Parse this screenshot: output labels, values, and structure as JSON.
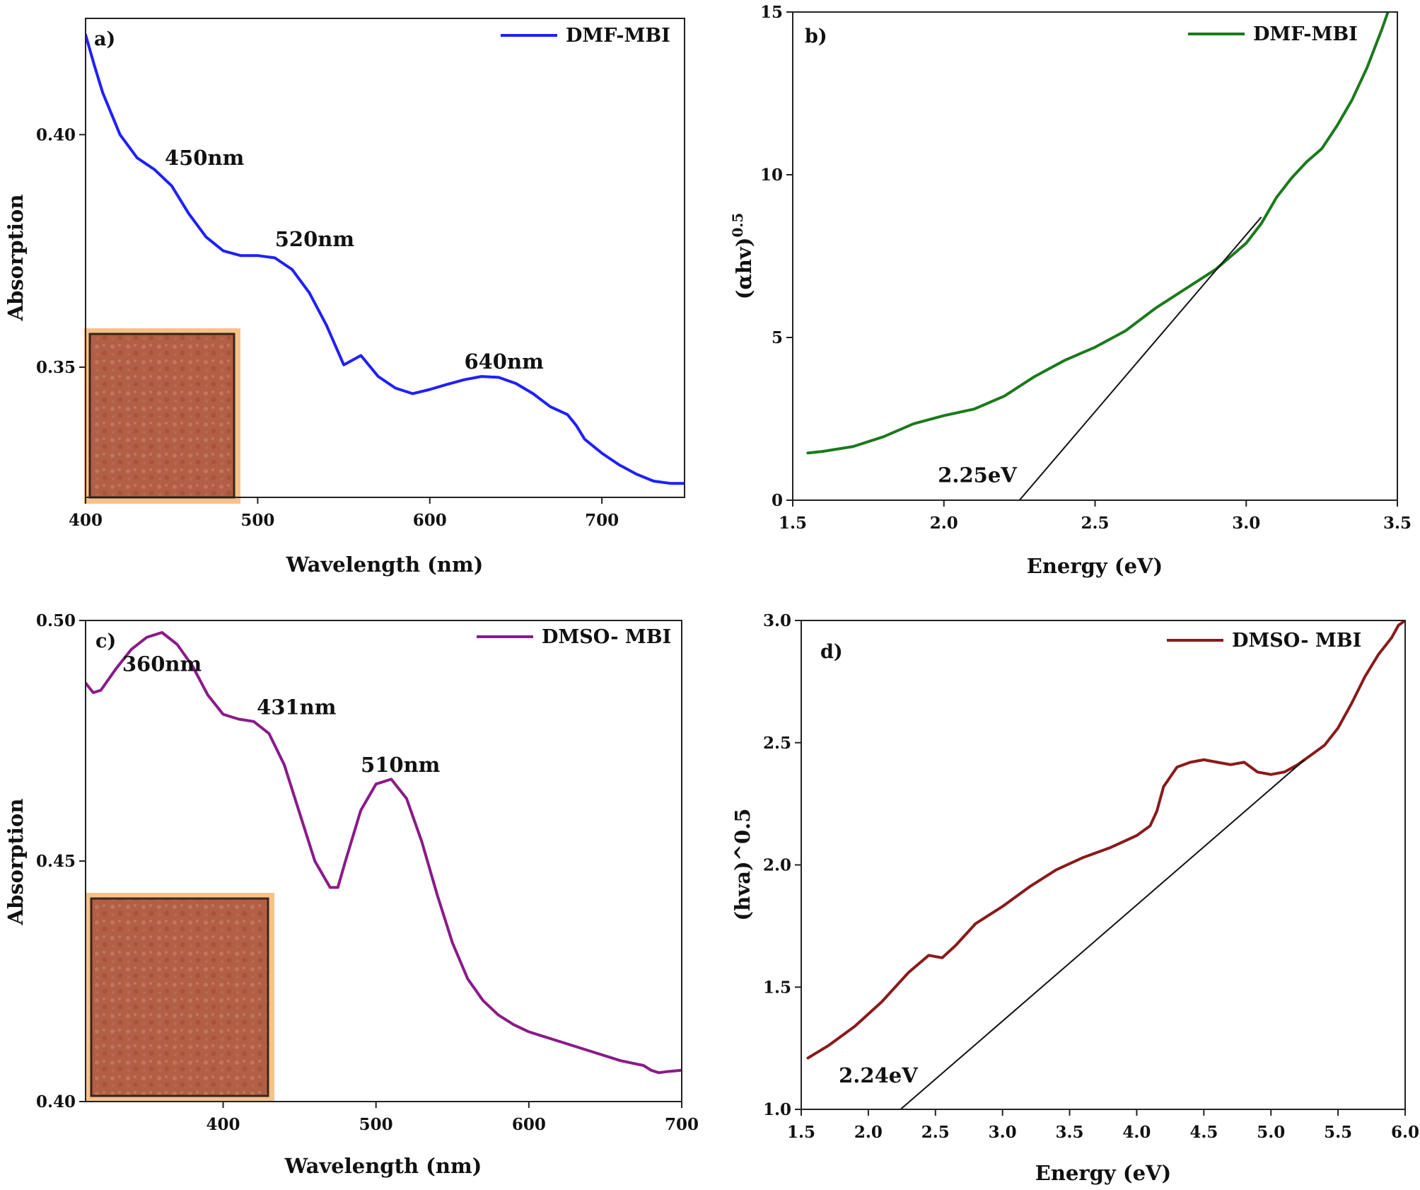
{
  "chart_data": [
    {
      "panel": "a)",
      "type": "line",
      "xlabel": "Wavelength (nm)",
      "ylabel": "Absorption",
      "xlim": [
        400,
        748
      ],
      "ylim": [
        0.322,
        0.425
      ],
      "xticks": [
        400,
        500,
        600,
        700
      ],
      "yticks": [
        0.35,
        0.4
      ],
      "ytick_labels": [
        "0.35",
        "0.40"
      ],
      "series": [
        {
          "name": "DMF-MBI",
          "color": "#1f1fff",
          "x": [
            400,
            405,
            410,
            420,
            430,
            440,
            450,
            460,
            470,
            480,
            490,
            500,
            510,
            520,
            530,
            540,
            550,
            560,
            570,
            580,
            590,
            600,
            610,
            620,
            630,
            640,
            650,
            660,
            670,
            680,
            685,
            690,
            700,
            710,
            720,
            730,
            740,
            748
          ],
          "y": [
            0.4215,
            0.415,
            0.409,
            0.4,
            0.395,
            0.3925,
            0.389,
            0.383,
            0.378,
            0.375,
            0.374,
            0.374,
            0.3735,
            0.371,
            0.366,
            0.359,
            0.3505,
            0.3525,
            0.348,
            0.3455,
            0.3443,
            0.3452,
            0.3463,
            0.3473,
            0.348,
            0.3478,
            0.3465,
            0.3443,
            0.3415,
            0.3398,
            0.3375,
            0.3345,
            0.3315,
            0.329,
            0.327,
            0.3255,
            0.325,
            0.325
          ]
        }
      ],
      "annotations": [
        {
          "text": "450nm",
          "x": 446,
          "y": 0.3935
        },
        {
          "text": "520nm",
          "x": 510,
          "y": 0.376
        },
        {
          "text": "640nm",
          "x": 620,
          "y": 0.3497
        }
      ]
    },
    {
      "panel": "b)",
      "type": "line",
      "xlabel": "Energy (eV)",
      "ylabel": "(αhv)",
      "ylabel_sup": "0.5",
      "xlim": [
        1.5,
        3.5
      ],
      "ylim": [
        0,
        15
      ],
      "xticks": [
        1.5,
        2.0,
        2.5,
        3.0,
        3.5
      ],
      "yticks": [
        0,
        5,
        10,
        15
      ],
      "series": [
        {
          "name": "DMF-MBI",
          "color": "#1a7a1a",
          "x": [
            1.55,
            1.6,
            1.7,
            1.8,
            1.9,
            2.0,
            2.1,
            2.2,
            2.3,
            2.4,
            2.5,
            2.6,
            2.7,
            2.8,
            2.9,
            3.0,
            3.05,
            3.1,
            3.15,
            3.2,
            3.25,
            3.3,
            3.35,
            3.4,
            3.45,
            3.48
          ],
          "y": [
            1.45,
            1.5,
            1.65,
            1.95,
            2.35,
            2.6,
            2.8,
            3.2,
            3.8,
            4.3,
            4.7,
            5.2,
            5.9,
            6.5,
            7.1,
            7.9,
            8.5,
            9.3,
            9.9,
            10.4,
            10.8,
            11.5,
            12.3,
            13.3,
            14.5,
            15.3
          ]
        }
      ],
      "fit_line": {
        "x": [
          2.25,
          3.05
        ],
        "y": [
          0,
          8.7
        ]
      },
      "annotations": [
        {
          "text": "2.25eV",
          "x": 1.98,
          "y": 0.55
        }
      ]
    },
    {
      "panel": "c)",
      "type": "line",
      "xlabel": "Wavelength (nm)",
      "ylabel": "Absorption",
      "xlim": [
        310,
        700
      ],
      "ylim": [
        0.4,
        0.5
      ],
      "xticks": [
        400,
        500,
        600,
        700
      ],
      "yticks": [
        0.4,
        0.45,
        0.5
      ],
      "ytick_labels": [
        "0.40",
        "0.45",
        "0.50"
      ],
      "series": [
        {
          "name": "DMSO- MBI",
          "color": "#8a1a8a",
          "x": [
            310,
            315,
            320,
            330,
            340,
            350,
            360,
            370,
            380,
            390,
            400,
            410,
            420,
            430,
            440,
            450,
            460,
            470,
            475,
            480,
            490,
            500,
            510,
            520,
            530,
            540,
            550,
            560,
            570,
            580,
            590,
            600,
            620,
            640,
            660,
            675,
            680,
            685,
            690,
            700
          ],
          "y": [
            0.487,
            0.485,
            0.4855,
            0.49,
            0.494,
            0.4965,
            0.4975,
            0.495,
            0.4905,
            0.4845,
            0.4805,
            0.4795,
            0.479,
            0.4765,
            0.47,
            0.46,
            0.45,
            0.4445,
            0.4445,
            0.45,
            0.4605,
            0.466,
            0.467,
            0.463,
            0.454,
            0.443,
            0.433,
            0.4255,
            0.421,
            0.418,
            0.416,
            0.4145,
            0.4125,
            0.4105,
            0.4085,
            0.4075,
            0.4065,
            0.406,
            0.4062,
            0.4065
          ]
        }
      ],
      "annotations": [
        {
          "text": "360nm",
          "x": 334,
          "y": 0.4895
        },
        {
          "text": "431nm",
          "x": 422,
          "y": 0.4805
        },
        {
          "text": "510nm",
          "x": 490,
          "y": 0.4685
        }
      ]
    },
    {
      "panel": "d)",
      "type": "line",
      "xlabel": "Energy (eV)",
      "ylabel": "(hva)^0.5",
      "xlim": [
        1.5,
        6.0
      ],
      "ylim": [
        1.0,
        3.0
      ],
      "xticks": [
        1.5,
        2.0,
        2.5,
        3.0,
        3.5,
        4.0,
        4.5,
        5.0,
        5.5,
        6.0
      ],
      "yticks": [
        1.0,
        1.5,
        2.0,
        2.5,
        3.0
      ],
      "series": [
        {
          "name": "DMSO- MBI",
          "color": "#8a1a1a",
          "x": [
            1.55,
            1.7,
            1.9,
            2.1,
            2.3,
            2.45,
            2.55,
            2.65,
            2.8,
            3.0,
            3.2,
            3.4,
            3.6,
            3.8,
            4.0,
            4.1,
            4.15,
            4.2,
            4.3,
            4.4,
            4.5,
            4.6,
            4.7,
            4.8,
            4.9,
            5.0,
            5.1,
            5.2,
            5.3,
            5.4,
            5.5,
            5.6,
            5.7,
            5.8,
            5.9,
            5.95,
            6.0
          ],
          "y": [
            1.21,
            1.26,
            1.34,
            1.44,
            1.56,
            1.63,
            1.62,
            1.67,
            1.76,
            1.83,
            1.91,
            1.98,
            2.03,
            2.07,
            2.12,
            2.16,
            2.22,
            2.32,
            2.4,
            2.42,
            2.43,
            2.42,
            2.41,
            2.42,
            2.38,
            2.37,
            2.38,
            2.41,
            2.45,
            2.49,
            2.56,
            2.66,
            2.77,
            2.86,
            2.93,
            2.98,
            3.0
          ]
        }
      ],
      "fit_line": {
        "x": [
          2.24,
          5.25
        ],
        "y": [
          1.0,
          2.43
        ]
      },
      "annotations": [
        {
          "text": "2.24eV",
          "x": 1.78,
          "y": 1.11
        }
      ]
    }
  ]
}
